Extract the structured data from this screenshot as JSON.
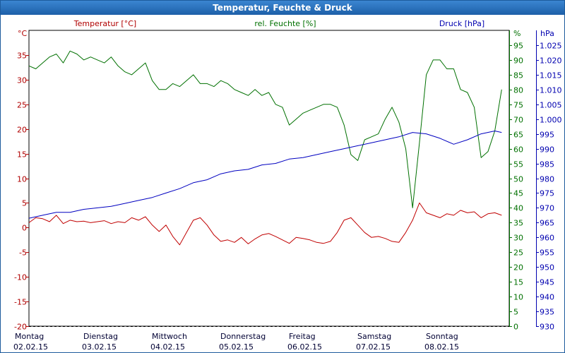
{
  "title": "Temperatur, Feuchte & Druck",
  "chart_data": {
    "type": "line",
    "title": "Temperatur, Feuchte & Druck",
    "grid": true,
    "x_days": [
      {
        "day": "Montag",
        "date": "02.02.15"
      },
      {
        "day": "Dienstag",
        "date": "03.02.15"
      },
      {
        "day": "Mittwoch",
        "date": "04.02.15"
      },
      {
        "day": "Donnerstag",
        "date": "05.02.15"
      },
      {
        "day": "Freitag",
        "date": "06.02.15"
      },
      {
        "day": "Samstag",
        "date": "07.02.15"
      },
      {
        "day": "Sonntag",
        "date": "08.02.15"
      }
    ],
    "axes": {
      "temperature": {
        "label": "Temperatur [°C]",
        "unit": "°C",
        "ylim": [
          -20,
          40
        ],
        "ticks": [
          -20,
          -15,
          -10,
          -5,
          0,
          5,
          10,
          15,
          20,
          25,
          30,
          35
        ],
        "color": "#b00000",
        "side": "left"
      },
      "humidity": {
        "label": "rel. Feuchte [%]",
        "unit": "%",
        "ylim": [
          0,
          100
        ],
        "ticks": [
          0,
          5,
          10,
          15,
          20,
          25,
          30,
          35,
          40,
          45,
          50,
          55,
          60,
          65,
          70,
          75,
          80,
          85,
          90,
          95
        ],
        "color": "#007000",
        "side": "right"
      },
      "pressure": {
        "label": "Druck [hPa]",
        "unit": "hPa",
        "ylim": [
          930,
          1030
        ],
        "ticks": [
          "930",
          "935",
          "940",
          "945",
          "950",
          "955",
          "960",
          "965",
          "970",
          "975",
          "980",
          "985",
          "990",
          "995",
          "1.000",
          "1.005",
          "1.010",
          "1.015",
          "1.020",
          "1.025"
        ],
        "color": "#0000b0",
        "side": "right"
      }
    },
    "series": [
      {
        "name": "Temperatur [°C]",
        "axis": "temperature",
        "color": "#c00000",
        "x": [
          0,
          0.1,
          0.2,
          0.3,
          0.4,
          0.5,
          0.6,
          0.7,
          0.8,
          0.9,
          1.0,
          1.1,
          1.2,
          1.3,
          1.4,
          1.5,
          1.6,
          1.7,
          1.8,
          1.9,
          2.0,
          2.1,
          2.2,
          2.3,
          2.4,
          2.5,
          2.6,
          2.7,
          2.8,
          2.9,
          3.0,
          3.1,
          3.2,
          3.3,
          3.4,
          3.5,
          3.6,
          3.7,
          3.8,
          3.9,
          4.0,
          4.1,
          4.2,
          4.3,
          4.4,
          4.5,
          4.6,
          4.7,
          4.8,
          4.9,
          5.0,
          5.1,
          5.2,
          5.3,
          5.4,
          5.5,
          5.6,
          5.7,
          5.8,
          5.9,
          6.0,
          6.1,
          6.2,
          6.3,
          6.4,
          6.5,
          6.6,
          6.7,
          6.8,
          6.9
        ],
        "values": [
          1.0,
          2.0,
          1.8,
          1.2,
          2.5,
          0.8,
          1.5,
          1.2,
          1.3,
          1.0,
          1.2,
          1.4,
          0.8,
          1.2,
          1.0,
          2.0,
          1.5,
          2.2,
          0.5,
          -0.8,
          0.5,
          -1.8,
          -3.5,
          -1.0,
          1.5,
          2.0,
          0.5,
          -1.5,
          -2.8,
          -2.5,
          -3.0,
          -2.0,
          -3.3,
          -2.3,
          -1.5,
          -1.2,
          -1.8,
          -2.5,
          -3.2,
          -2.0,
          -2.2,
          -2.5,
          -3.0,
          -3.2,
          -2.8,
          -1.0,
          1.5,
          2.0,
          0.5,
          -1.0,
          -2.0,
          -1.8,
          -2.2,
          -2.8,
          -3.0,
          -1.0,
          1.5,
          5.0,
          3.0,
          2.5,
          2.0,
          2.8,
          2.5,
          3.5,
          3.0,
          3.2,
          2.0,
          2.8,
          3.0,
          2.5
        ]
      },
      {
        "name": "rel. Feuchte [%]",
        "axis": "humidity",
        "color": "#007000",
        "x": [
          0,
          0.1,
          0.2,
          0.3,
          0.4,
          0.5,
          0.6,
          0.7,
          0.8,
          0.9,
          1.0,
          1.1,
          1.2,
          1.3,
          1.4,
          1.5,
          1.6,
          1.7,
          1.8,
          1.9,
          2.0,
          2.1,
          2.2,
          2.3,
          2.4,
          2.5,
          2.6,
          2.7,
          2.8,
          2.9,
          3.0,
          3.1,
          3.2,
          3.3,
          3.4,
          3.5,
          3.6,
          3.7,
          3.8,
          3.9,
          4.0,
          4.1,
          4.2,
          4.3,
          4.4,
          4.5,
          4.6,
          4.7,
          4.8,
          4.9,
          5.0,
          5.1,
          5.2,
          5.3,
          5.4,
          5.5,
          5.6,
          5.7,
          5.8,
          5.9,
          6.0,
          6.1,
          6.2,
          6.3,
          6.4,
          6.5,
          6.6,
          6.7,
          6.8,
          6.9
        ],
        "values": [
          88,
          87,
          89,
          91,
          92,
          89,
          93,
          92,
          90,
          91,
          90,
          89,
          91,
          88,
          86,
          85,
          87,
          89,
          83,
          80,
          80,
          82,
          81,
          83,
          85,
          82,
          82,
          81,
          83,
          82,
          80,
          79,
          78,
          80,
          78,
          79,
          75,
          74,
          68,
          70,
          72,
          73,
          74,
          75,
          75,
          74,
          68,
          58,
          56,
          63,
          64,
          65,
          70,
          74,
          69,
          60,
          40,
          62,
          85,
          90,
          90,
          87,
          87,
          80,
          79,
          74,
          57,
          59,
          66,
          80
        ]
      },
      {
        "name": "Druck [hPa]",
        "axis": "pressure",
        "color": "#0000c0",
        "x": [
          0,
          0.2,
          0.4,
          0.6,
          0.8,
          1.0,
          1.2,
          1.4,
          1.6,
          1.8,
          2.0,
          2.2,
          2.4,
          2.6,
          2.8,
          3.0,
          3.2,
          3.4,
          3.6,
          3.8,
          4.0,
          4.2,
          4.4,
          4.6,
          4.8,
          5.0,
          5.2,
          5.4,
          5.6,
          5.8,
          6.0,
          6.2,
          6.4,
          6.6,
          6.8,
          6.9
        ],
        "values": [
          966.5,
          967.5,
          968.5,
          968.5,
          969.5,
          970.0,
          970.5,
          971.5,
          972.5,
          973.5,
          975.0,
          976.5,
          978.5,
          979.5,
          981.5,
          982.5,
          983.0,
          984.5,
          985.0,
          986.5,
          987.0,
          988.0,
          989.0,
          990.0,
          991.0,
          992.0,
          993.0,
          994.0,
          995.5,
          995.0,
          993.5,
          991.5,
          993.0,
          995.0,
          996.0,
          995.5
        ]
      }
    ]
  }
}
